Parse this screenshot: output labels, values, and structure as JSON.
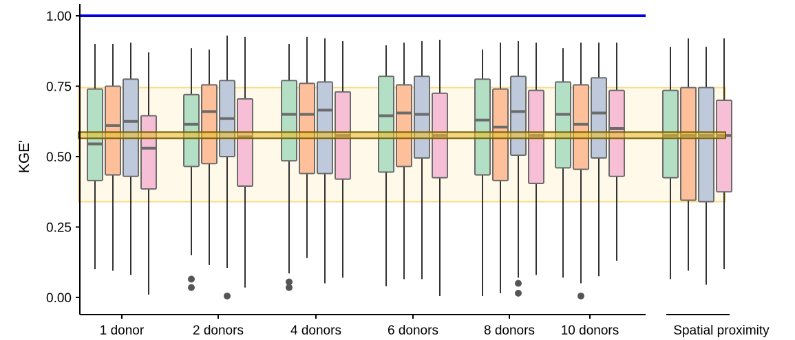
{
  "chart_data": {
    "type": "box",
    "ylabel": "KGE'",
    "xlabel": "",
    "ylim": [
      -0.05,
      1.05
    ],
    "yticks": [
      "0.00",
      "0.25",
      "0.50",
      "0.75",
      "1.00"
    ],
    "groups": [
      "1 donor",
      "2 donors",
      "4 donors",
      "6 donors",
      "8 donors",
      "10 donors",
      "Spatial proximity"
    ],
    "colors": [
      "#b3dfc4",
      "#fdc09a",
      "#bfc9dc",
      "#f6bfd6"
    ],
    "reference_line": {
      "y": 1.0,
      "color": "#0000e0"
    },
    "band": {
      "ymin": 0.34,
      "ymax": 0.745,
      "center": 0.575,
      "center_low": 0.565,
      "center_high": 0.587,
      "fill": "#fff9ea",
      "border": "#f8dc8a",
      "center_color": "#7a5c00"
    },
    "boxes": [
      [
        {
          "wlow": 0.1,
          "q1": 0.415,
          "median": 0.545,
          "q3": 0.74,
          "whigh": 0.9,
          "outliers": []
        },
        {
          "wlow": 0.095,
          "q1": 0.435,
          "median": 0.61,
          "q3": 0.75,
          "whigh": 0.9,
          "outliers": []
        },
        {
          "wlow": 0.08,
          "q1": 0.43,
          "median": 0.625,
          "q3": 0.775,
          "whigh": 0.905,
          "outliers": []
        },
        {
          "wlow": 0.01,
          "q1": 0.385,
          "median": 0.53,
          "q3": 0.645,
          "whigh": 0.87,
          "outliers": []
        }
      ],
      [
        {
          "wlow": 0.15,
          "q1": 0.465,
          "median": 0.615,
          "q3": 0.72,
          "whigh": 0.885,
          "outliers": [
            0.065,
            0.035
          ]
        },
        {
          "wlow": 0.115,
          "q1": 0.475,
          "median": 0.66,
          "q3": 0.755,
          "whigh": 0.88,
          "outliers": []
        },
        {
          "wlow": 0.105,
          "q1": 0.5,
          "median": 0.635,
          "q3": 0.77,
          "whigh": 0.93,
          "outliers": [
            0.005
          ]
        },
        {
          "wlow": 0.035,
          "q1": 0.395,
          "median": 0.57,
          "q3": 0.705,
          "whigh": 0.925,
          "outliers": []
        }
      ],
      [
        {
          "wlow": 0.085,
          "q1": 0.485,
          "median": 0.65,
          "q3": 0.77,
          "whigh": 0.9,
          "outliers": [
            0.055,
            0.035
          ]
        },
        {
          "wlow": 0.14,
          "q1": 0.44,
          "median": 0.65,
          "q3": 0.76,
          "whigh": 0.925,
          "outliers": []
        },
        {
          "wlow": 0.05,
          "q1": 0.44,
          "median": 0.665,
          "q3": 0.765,
          "whigh": 0.92,
          "outliers": []
        },
        {
          "wlow": 0.07,
          "q1": 0.42,
          "median": 0.575,
          "q3": 0.73,
          "whigh": 0.91,
          "outliers": []
        }
      ],
      [
        {
          "wlow": 0.04,
          "q1": 0.445,
          "median": 0.645,
          "q3": 0.785,
          "whigh": 0.895,
          "outliers": []
        },
        {
          "wlow": 0.065,
          "q1": 0.465,
          "median": 0.655,
          "q3": 0.755,
          "whigh": 0.905,
          "outliers": []
        },
        {
          "wlow": 0.065,
          "q1": 0.495,
          "median": 0.65,
          "q3": 0.785,
          "whigh": 0.91,
          "outliers": []
        },
        {
          "wlow": 0.005,
          "q1": 0.425,
          "median": 0.575,
          "q3": 0.725,
          "whigh": 0.915,
          "outliers": []
        }
      ],
      [
        {
          "wlow": 0.005,
          "q1": 0.435,
          "median": 0.63,
          "q3": 0.775,
          "whigh": 0.88,
          "outliers": []
        },
        {
          "wlow": 0.015,
          "q1": 0.415,
          "median": 0.605,
          "q3": 0.74,
          "whigh": 0.905,
          "outliers": []
        },
        {
          "wlow": 0.07,
          "q1": 0.505,
          "median": 0.66,
          "q3": 0.785,
          "whigh": 0.91,
          "outliers": [
            0.05,
            0.015
          ]
        },
        {
          "wlow": 0.08,
          "q1": 0.405,
          "median": 0.575,
          "q3": 0.735,
          "whigh": 0.905,
          "outliers": []
        }
      ],
      [
        {
          "wlow": 0.07,
          "q1": 0.46,
          "median": 0.65,
          "q3": 0.765,
          "whigh": 0.885,
          "outliers": []
        },
        {
          "wlow": 0.05,
          "q1": 0.455,
          "median": 0.615,
          "q3": 0.755,
          "whigh": 0.905,
          "outliers": [
            0.005
          ]
        },
        {
          "wlow": 0.075,
          "q1": 0.495,
          "median": 0.655,
          "q3": 0.78,
          "whigh": 0.905,
          "outliers": []
        },
        {
          "wlow": 0.13,
          "q1": 0.43,
          "median": 0.6,
          "q3": 0.735,
          "whigh": 0.905,
          "outliers": []
        }
      ],
      [
        {
          "wlow": 0.065,
          "q1": 0.425,
          "median": 0.575,
          "q3": 0.735,
          "whigh": 0.89,
          "outliers": []
        },
        {
          "wlow": 0.095,
          "q1": 0.345,
          "median": 0.575,
          "q3": 0.745,
          "whigh": 0.92,
          "outliers": []
        },
        {
          "wlow": 0.045,
          "q1": 0.34,
          "median": 0.575,
          "q3": 0.745,
          "whigh": 0.89,
          "outliers": []
        },
        {
          "wlow": 0.1,
          "q1": 0.375,
          "median": 0.575,
          "q3": 0.7,
          "whigh": 0.92,
          "outliers": []
        }
      ]
    ]
  }
}
